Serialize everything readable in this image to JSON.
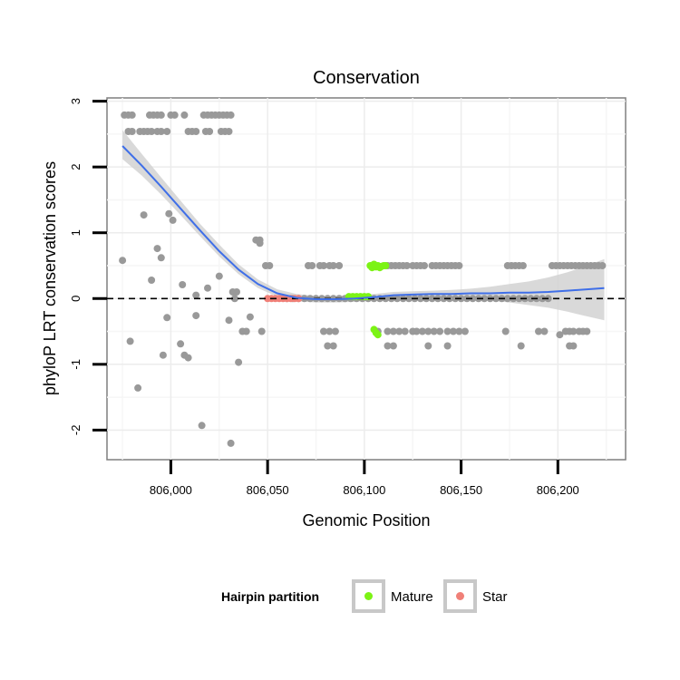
{
  "chart_data": {
    "type": "scatter",
    "title": "Conservation",
    "xlabel": "Genomic Position",
    "ylabel": "phyloP LRT conservation scores",
    "xlim": [
      805967,
      806235
    ],
    "ylim": [
      -2.45,
      3.05
    ],
    "xticks": [
      806000,
      806050,
      806100,
      806150,
      806200
    ],
    "xtick_labels": [
      "806,000",
      "806,050",
      "806,100",
      "806,150",
      "806,200"
    ],
    "yticks": [
      -2,
      -1,
      0,
      1,
      2,
      3
    ],
    "ytick_labels": [
      "-2",
      "-1",
      "0",
      "1",
      "2",
      "3"
    ],
    "reference_line": {
      "y": 0,
      "style": "dashed"
    },
    "grid": true,
    "legend": {
      "title": "Hairpin partition",
      "position": "bottom",
      "entries": [
        {
          "label": "Mature",
          "color": "#7CF315"
        },
        {
          "label": "Star",
          "color": "#F08078"
        }
      ]
    },
    "colors": {
      "other": "#999999",
      "mature": "#7CF315",
      "star": "#F08078",
      "smooth": "#3F6FE8",
      "band": "#D2D2D2"
    },
    "series": [
      {
        "name": "Other",
        "color": "#999999",
        "points": [
          [
            805976,
            2.79
          ],
          [
            805978,
            2.79
          ],
          [
            805980,
            2.79
          ],
          [
            805989,
            2.79
          ],
          [
            805991,
            2.79
          ],
          [
            805993,
            2.79
          ],
          [
            805995,
            2.79
          ],
          [
            806000,
            2.79
          ],
          [
            806002,
            2.79
          ],
          [
            806007,
            2.79
          ],
          [
            806017,
            2.79
          ],
          [
            806019,
            2.79
          ],
          [
            806021,
            2.79
          ],
          [
            806023,
            2.79
          ],
          [
            806025,
            2.79
          ],
          [
            806027,
            2.79
          ],
          [
            806029,
            2.79
          ],
          [
            806031,
            2.79
          ],
          [
            805978,
            2.54
          ],
          [
            805980,
            2.54
          ],
          [
            805984,
            2.54
          ],
          [
            805986,
            2.54
          ],
          [
            805988,
            2.54
          ],
          [
            805990,
            2.54
          ],
          [
            805993,
            2.54
          ],
          [
            805995,
            2.54
          ],
          [
            805998,
            2.54
          ],
          [
            806009,
            2.54
          ],
          [
            806011,
            2.54
          ],
          [
            806013,
            2.54
          ],
          [
            806018,
            2.54
          ],
          [
            806020,
            2.54
          ],
          [
            806026,
            2.54
          ],
          [
            806028,
            2.54
          ],
          [
            806030,
            2.54
          ],
          [
            805975,
            0.58
          ],
          [
            805979,
            -0.65
          ],
          [
            805983,
            -1.36
          ],
          [
            805986,
            1.27
          ],
          [
            805990,
            0.28
          ],
          [
            805993,
            0.76
          ],
          [
            805995,
            0.62
          ],
          [
            805996,
            -0.86
          ],
          [
            805998,
            -0.29
          ],
          [
            805999,
            1.29
          ],
          [
            806001,
            1.19
          ],
          [
            806005,
            -0.69
          ],
          [
            806006,
            0.21
          ],
          [
            806007,
            -0.86
          ],
          [
            806009,
            -0.9
          ],
          [
            806013,
            -0.26
          ],
          [
            806013,
            0.05
          ],
          [
            806016,
            -1.93
          ],
          [
            806019,
            0.16
          ],
          [
            806025,
            0.34
          ],
          [
            806030,
            -0.33
          ],
          [
            806031,
            -2.2
          ],
          [
            806032,
            0.1
          ],
          [
            806033,
            0.0
          ],
          [
            806034,
            0.1
          ],
          [
            806035,
            -0.97
          ],
          [
            806037,
            -0.5
          ],
          [
            806039,
            -0.5
          ],
          [
            806041,
            -0.28
          ],
          [
            806044,
            0.89
          ],
          [
            806046,
            0.89
          ],
          [
            806046,
            0.84
          ],
          [
            806047,
            -0.5
          ],
          [
            806049,
            0.5
          ],
          [
            806051,
            0.5
          ],
          [
            806071,
            0.5
          ],
          [
            806073,
            0.5
          ],
          [
            806077,
            0.5
          ],
          [
            806079,
            0.5
          ],
          [
            806082,
            0.5
          ],
          [
            806084,
            0.5
          ],
          [
            806087,
            0.5
          ],
          [
            806112,
            0.5
          ],
          [
            806114,
            0.5
          ],
          [
            806116,
            0.5
          ],
          [
            806118,
            0.5
          ],
          [
            806120,
            0.5
          ],
          [
            806122,
            0.5
          ],
          [
            806125,
            0.5
          ],
          [
            806127,
            0.5
          ],
          [
            806129,
            0.5
          ],
          [
            806131,
            0.5
          ],
          [
            806135,
            0.5
          ],
          [
            806137,
            0.5
          ],
          [
            806139,
            0.5
          ],
          [
            806141,
            0.5
          ],
          [
            806143,
            0.5
          ],
          [
            806145,
            0.5
          ],
          [
            806147,
            0.5
          ],
          [
            806149,
            0.5
          ],
          [
            806174,
            0.5
          ],
          [
            806176,
            0.5
          ],
          [
            806178,
            0.5
          ],
          [
            806180,
            0.5
          ],
          [
            806182,
            0.5
          ],
          [
            806197,
            0.5
          ],
          [
            806199,
            0.5
          ],
          [
            806201,
            0.5
          ],
          [
            806203,
            0.5
          ],
          [
            806205,
            0.5
          ],
          [
            806207,
            0.5
          ],
          [
            806209,
            0.5
          ],
          [
            806211,
            0.5
          ],
          [
            806213,
            0.5
          ],
          [
            806215,
            0.5
          ],
          [
            806217,
            0.5
          ],
          [
            806219,
            0.5
          ],
          [
            806221,
            0.5
          ],
          [
            806223,
            0.5
          ],
          [
            806079,
            -0.5
          ],
          [
            806082,
            -0.5
          ],
          [
            806085,
            -0.5
          ],
          [
            806107,
            -0.5
          ],
          [
            806112,
            -0.5
          ],
          [
            806115,
            -0.5
          ],
          [
            806118,
            -0.5
          ],
          [
            806121,
            -0.5
          ],
          [
            806125,
            -0.5
          ],
          [
            806127,
            -0.5
          ],
          [
            806130,
            -0.5
          ],
          [
            806133,
            -0.5
          ],
          [
            806136,
            -0.5
          ],
          [
            806139,
            -0.5
          ],
          [
            806143,
            -0.5
          ],
          [
            806146,
            -0.5
          ],
          [
            806149,
            -0.5
          ],
          [
            806152,
            -0.5
          ],
          [
            806173,
            -0.5
          ],
          [
            806190,
            -0.5
          ],
          [
            806193,
            -0.5
          ],
          [
            806201,
            -0.55
          ],
          [
            806204,
            -0.5
          ],
          [
            806206,
            -0.5
          ],
          [
            806208,
            -0.5
          ],
          [
            806211,
            -0.5
          ],
          [
            806213,
            -0.5
          ],
          [
            806215,
            -0.5
          ],
          [
            806081,
            -0.72
          ],
          [
            806084,
            -0.72
          ],
          [
            806112,
            -0.72
          ],
          [
            806115,
            -0.72
          ],
          [
            806133,
            -0.72
          ],
          [
            806143,
            -0.72
          ],
          [
            806181,
            -0.72
          ],
          [
            806206,
            -0.72
          ],
          [
            806208,
            -0.72
          ],
          [
            806060,
            0.0
          ],
          [
            806063,
            0.0
          ],
          [
            806066,
            0.0
          ],
          [
            806069,
            0.0
          ],
          [
            806072,
            0.0
          ],
          [
            806075,
            0.0
          ],
          [
            806078,
            0.0
          ],
          [
            806081,
            0.0
          ],
          [
            806084,
            0.0
          ],
          [
            806087,
            0.0
          ],
          [
            806090,
            0.0
          ],
          [
            806093,
            0.0
          ],
          [
            806096,
            0.0
          ],
          [
            806099,
            0.0
          ],
          [
            806102,
            0.0
          ],
          [
            806105,
            0.0
          ],
          [
            806108,
            0.0
          ],
          [
            806111,
            0.0
          ],
          [
            806114,
            0.0
          ],
          [
            806117,
            0.0
          ],
          [
            806120,
            0.0
          ],
          [
            806123,
            0.0
          ],
          [
            806126,
            0.0
          ],
          [
            806129,
            0.0
          ],
          [
            806132,
            0.0
          ],
          [
            806135,
            0.0
          ],
          [
            806138,
            0.0
          ],
          [
            806141,
            0.0
          ],
          [
            806144,
            0.0
          ],
          [
            806147,
            0.0
          ],
          [
            806150,
            0.0
          ],
          [
            806153,
            0.0
          ],
          [
            806156,
            0.0
          ],
          [
            806159,
            0.0
          ],
          [
            806162,
            0.0
          ],
          [
            806165,
            0.0
          ],
          [
            806168,
            0.0
          ],
          [
            806171,
            0.0
          ],
          [
            806174,
            0.0
          ],
          [
            806177,
            0.0
          ],
          [
            806180,
            0.0
          ],
          [
            806183,
            0.0
          ],
          [
            806186,
            0.0
          ],
          [
            806189,
            0.0
          ],
          [
            806192,
            0.0
          ],
          [
            806195,
            0.0
          ]
        ]
      },
      {
        "name": "Mature",
        "color": "#7CF315",
        "points": [
          [
            806103,
            0.5
          ],
          [
            806104,
            0.47
          ],
          [
            806105,
            0.52
          ],
          [
            806106,
            0.48
          ],
          [
            806107,
            0.5
          ],
          [
            806108,
            0.47
          ],
          [
            806109,
            0.49
          ],
          [
            806110,
            0.5
          ],
          [
            806111,
            0.5
          ],
          [
            806105,
            -0.47
          ],
          [
            806106,
            -0.52
          ],
          [
            806107,
            -0.55
          ],
          [
            806092,
            0.03
          ],
          [
            806094,
            0.03
          ],
          [
            806096,
            0.03
          ],
          [
            806098,
            0.03
          ],
          [
            806100,
            0.03
          ],
          [
            806102,
            0.03
          ]
        ]
      },
      {
        "name": "Star",
        "color": "#F08078",
        "points": [
          [
            806050,
            0.0
          ],
          [
            806052,
            0.0
          ],
          [
            806054,
            0.0
          ],
          [
            806056,
            0.0
          ],
          [
            806058,
            0.0
          ],
          [
            806060,
            0.0
          ],
          [
            806062,
            0.0
          ],
          [
            806064,
            0.0
          ],
          [
            806066,
            0.0
          ]
        ]
      }
    ],
    "smooth_line": {
      "name": "loess fit",
      "x": [
        805975,
        805985,
        805995,
        806005,
        806015,
        806025,
        806035,
        806045,
        806055,
        806065,
        806075,
        806085,
        806095,
        806105,
        806115,
        806125,
        806135,
        806145,
        806155,
        806165,
        806175,
        806185,
        806195,
        806205,
        806215,
        806224
      ],
      "y": [
        2.32,
        2.02,
        1.7,
        1.37,
        1.04,
        0.72,
        0.44,
        0.22,
        0.08,
        0.01,
        -0.01,
        -0.01,
        0.0,
        0.02,
        0.05,
        0.06,
        0.07,
        0.07,
        0.08,
        0.08,
        0.09,
        0.09,
        0.1,
        0.12,
        0.14,
        0.16
      ],
      "lower": [
        2.12,
        1.87,
        1.58,
        1.27,
        0.95,
        0.64,
        0.37,
        0.16,
        0.03,
        -0.04,
        -0.06,
        -0.06,
        -0.05,
        -0.03,
        0.0,
        0.01,
        0.01,
        0.0,
        -0.01,
        -0.03,
        -0.06,
        -0.1,
        -0.14,
        -0.2,
        -0.27,
        -0.33
      ],
      "upper": [
        2.56,
        2.2,
        1.84,
        1.49,
        1.14,
        0.82,
        0.52,
        0.29,
        0.14,
        0.07,
        0.04,
        0.04,
        0.05,
        0.07,
        0.1,
        0.11,
        0.12,
        0.13,
        0.15,
        0.18,
        0.22,
        0.26,
        0.32,
        0.4,
        0.5,
        0.6
      ]
    }
  }
}
